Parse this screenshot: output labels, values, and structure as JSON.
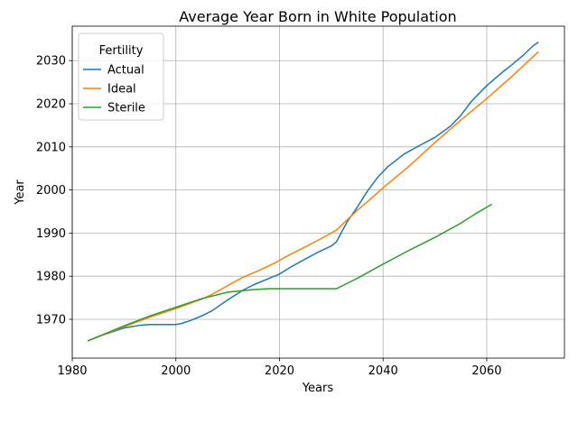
{
  "chart_data": {
    "type": "line",
    "title": "Average Year Born in White Population",
    "xlabel": "Years",
    "ylabel": "Year",
    "xlim": [
      1980,
      2075
    ],
    "ylim": [
      1961,
      2038
    ],
    "xticks": [
      1980,
      2000,
      2020,
      2040,
      2060
    ],
    "yticks": [
      1970,
      1980,
      1990,
      2000,
      2010,
      2020,
      2030
    ],
    "grid": true,
    "legend": {
      "title": "Fertility",
      "placement": "top-left"
    },
    "series": [
      {
        "name": "Actual",
        "color": "#1f77b4",
        "x": [
          1983,
          1985,
          1990,
          1993,
          1995,
          2000,
          2001,
          2003,
          2005,
          2007,
          2010,
          2013,
          2015,
          2018,
          2020,
          2022,
          2025,
          2027,
          2030,
          2031,
          2033,
          2035,
          2037,
          2039,
          2041,
          2044,
          2047,
          2050,
          2053,
          2055,
          2057,
          2060,
          2063,
          2065,
          2067,
          2069,
          2070
        ],
        "y": [
          1965,
          1966,
          1968,
          1968.6,
          1968.8,
          1968.8,
          1969,
          1969.8,
          1970.8,
          1972,
          1974.5,
          1976.8,
          1978,
          1979.5,
          1980.5,
          1982,
          1984,
          1985.3,
          1987,
          1988,
          1992.5,
          1996,
          1999.8,
          2003,
          2005.5,
          2008.3,
          2010.3,
          2012.2,
          2014.8,
          2017.3,
          2020.5,
          2024.2,
          2027.3,
          2029.2,
          2031.2,
          2033.5,
          2034.3
        ]
      },
      {
        "name": "Ideal",
        "color": "#ff7f0e",
        "x": [
          1983,
          1990,
          1995,
          2000,
          2005,
          2007,
          2010,
          2013,
          2016,
          2019,
          2022,
          2025,
          2028,
          2031,
          2033,
          2035,
          2037,
          2040,
          2045,
          2050,
          2055,
          2060,
          2065,
          2070
        ],
        "y": [
          1965,
          1968.3,
          1970.5,
          1972.5,
          1974.7,
          1975.8,
          1977.8,
          1979.8,
          1981.3,
          1983,
          1985,
          1986.8,
          1988.7,
          1990.7,
          1993,
          1995.3,
          1997.3,
          2000.5,
          2005.5,
          2011,
          2016.2,
          2021.2,
          2026.5,
          2032.1
        ]
      },
      {
        "name": "Sterile",
        "color": "#2ca02c",
        "x": [
          1983,
          1990,
          1995,
          2000,
          2005,
          2010,
          2015,
          2018,
          2020,
          2025,
          2031,
          2035,
          2040,
          2045,
          2050,
          2055,
          2058,
          2061
        ],
        "y": [
          1965,
          1968.5,
          1970.8,
          1972.8,
          1974.8,
          1976.3,
          1976.9,
          1977.1,
          1977.1,
          1977.1,
          1977.1,
          1979.5,
          1982.8,
          1986,
          1989,
          1992.3,
          1994.6,
          1996.7
        ]
      }
    ]
  }
}
